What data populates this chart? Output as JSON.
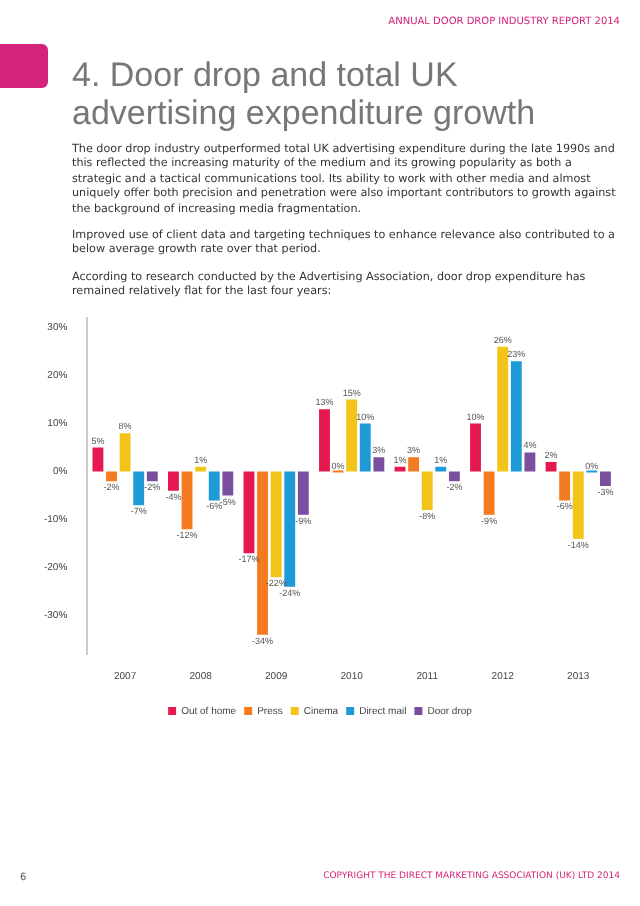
{
  "chart_data": {
    "type": "bar",
    "title": "4. Door drop and total UK advertising expenditure growth",
    "annotations": [
      "ANNUAL DOOR DROP INDUSTRY REPORT 2014",
      "The door drop industry outperformed total UK advertising expenditure during the late 1990s and this reflected the increasing maturity of the medium and its growing popularity as both a strategic and a tactical communications tool. Its ability to work with other media and almost uniquely offer both precision and penetration were also important contributors to growth against the background of increasing media fragmentation.",
      "Improved use of client data and targeting techniques to enhance relevance also contributed to a below average growth rate over that period.",
      "According to research conducted by the Advertising Association, door drop expenditure has remained relatively flat for the last four years:",
      "6",
      "COPYRIGHT THE DIRECT MARKETING ASSOCIATION (UK) LTD 2014"
    ],
    "categories": [
      "2007",
      "2008",
      "2009",
      "2010",
      "2011",
      "2012",
      "2013"
    ],
    "series": [
      {
        "name": "Out of home",
        "color": "#e5194f",
        "values": [
          5,
          -4,
          -17,
          13,
          1,
          10,
          2
        ],
        "value_labels": [
          "5%",
          "-4%",
          "-17%",
          "13%",
          "1%",
          "10%",
          "2%"
        ]
      },
      {
        "name": "Press",
        "color": "#f47b20",
        "values": [
          -2,
          -12,
          -34,
          0,
          3,
          -9,
          -6
        ],
        "value_labels": [
          "-2%",
          "-12%",
          "-34%",
          "0%",
          "3%",
          "-9%",
          "-6%"
        ]
      },
      {
        "name": "Cinema",
        "color": "#f2c318",
        "values": [
          8,
          1,
          -22,
          15,
          -8,
          26,
          -14
        ],
        "value_labels": [
          "8%",
          "1%",
          "-22%",
          "15%",
          "-8%",
          "26%",
          "-14%"
        ]
      },
      {
        "name": "Direct mail",
        "color": "#1e9ad6",
        "values": [
          -7,
          -6,
          -24,
          10,
          1,
          23,
          0
        ],
        "value_labels": [
          "-7%",
          "-6%",
          "-24%",
          "10%",
          "1%",
          "23%",
          "0%"
        ]
      },
      {
        "name": "Door drop",
        "color": "#7b4fa0",
        "values": [
          -2,
          -5,
          -9,
          3,
          -2,
          4,
          -3
        ],
        "value_labels": [
          "-2%",
          "-5%",
          "-9%",
          "3%",
          "-2%",
          "4%",
          "-3%"
        ]
      }
    ],
    "ylim": [
      -38,
      32
    ],
    "yticks": [
      {
        "value": -30,
        "label": "-30%"
      },
      {
        "value": -20,
        "label": "-20%"
      },
      {
        "value": -10,
        "label": "-10%"
      },
      {
        "value": 0,
        "label": "0%"
      },
      {
        "value": 10,
        "label": "10%"
      },
      {
        "value": 20,
        "label": "20%"
      },
      {
        "value": 30,
        "label": "30%"
      }
    ],
    "grid": false,
    "legend": "bottom"
  }
}
